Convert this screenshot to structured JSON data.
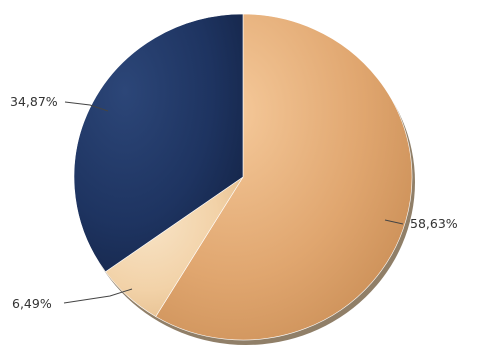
{
  "chart_data": {
    "type": "pie",
    "title": "",
    "slices": [
      {
        "label": "58,63%",
        "value": 58.63,
        "color": "#e0a66f",
        "color_light": "#f5c99a",
        "color_dark": "#c98d55"
      },
      {
        "label": "6,49%",
        "value": 6.49,
        "color": "#f2d2a8",
        "color_light": "#f8e4c7",
        "color_dark": "#e3bb8a"
      },
      {
        "label": "34,87%",
        "value": 34.87,
        "color": "#1e3461",
        "color_light": "#2c4678",
        "color_dark": "#142447"
      }
    ],
    "start_angle": "12 o'clock",
    "direction": "clockwise",
    "legend": "none",
    "shadow_color": "#6b5436"
  }
}
